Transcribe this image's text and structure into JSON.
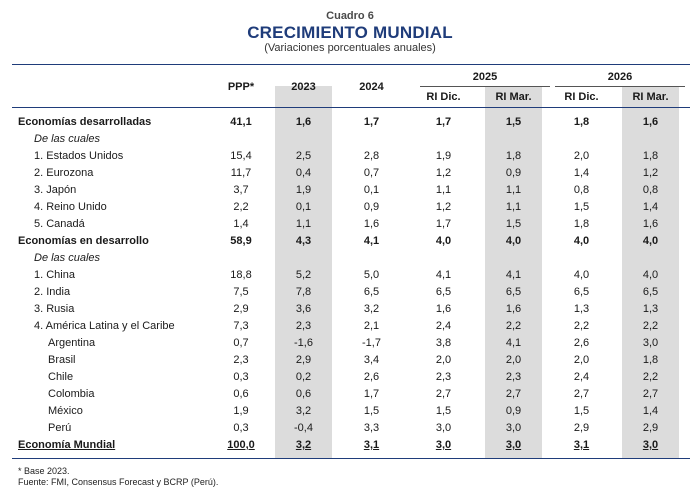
{
  "header": {
    "kicker": "Cuadro 6",
    "title": "CRECIMIENTO MUNDIAL",
    "subtitle": "(Variaciones porcentuales anuales)"
  },
  "columns": {
    "ppp": "PPP*",
    "y2023": "2023",
    "y2024": "2024",
    "y2025": "2025",
    "y2026": "2026",
    "ri_dic": "RI Dic.",
    "ri_mar": "RI Mar."
  },
  "rows": [
    {
      "label": "Economías desarrolladas",
      "style": "bold",
      "values": [
        "41,1",
        "1,6",
        "1,7",
        "1,7",
        "1,5",
        "1,8",
        "1,6"
      ]
    },
    {
      "label": "De las cuales",
      "style": "italic",
      "values": [
        "",
        "",
        "",
        "",
        "",
        "",
        ""
      ]
    },
    {
      "label": "1.  Estados Unidos",
      "style": "item",
      "values": [
        "15,4",
        "2,5",
        "2,8",
        "1,9",
        "1,8",
        "2,0",
        "1,8"
      ]
    },
    {
      "label": "2.  Eurozona",
      "style": "item",
      "values": [
        "11,7",
        "0,4",
        "0,7",
        "1,2",
        "0,9",
        "1,4",
        "1,2"
      ]
    },
    {
      "label": "3.  Japón",
      "style": "item",
      "values": [
        "3,7",
        "1,9",
        "0,1",
        "1,1",
        "1,1",
        "0,8",
        "0,8"
      ]
    },
    {
      "label": "4.  Reino Unido",
      "style": "item",
      "values": [
        "2,2",
        "0,1",
        "0,9",
        "1,2",
        "1,1",
        "1,5",
        "1,4"
      ]
    },
    {
      "label": "5.  Canadá",
      "style": "item",
      "values": [
        "1,4",
        "1,1",
        "1,6",
        "1,7",
        "1,5",
        "1,8",
        "1,6"
      ]
    },
    {
      "label": "Economías en desarrollo",
      "style": "bold",
      "values": [
        "58,9",
        "4,3",
        "4,1",
        "4,0",
        "4,0",
        "4,0",
        "4,0"
      ]
    },
    {
      "label": "De las cuales",
      "style": "italic",
      "values": [
        "",
        "",
        "",
        "",
        "",
        "",
        ""
      ]
    },
    {
      "label": "1.  China",
      "style": "item",
      "values": [
        "18,8",
        "5,2",
        "5,0",
        "4,1",
        "4,1",
        "4,0",
        "4,0"
      ]
    },
    {
      "label": "2.  India",
      "style": "item",
      "values": [
        "7,5",
        "7,8",
        "6,5",
        "6,5",
        "6,5",
        "6,5",
        "6,5"
      ]
    },
    {
      "label": "3.  Rusia",
      "style": "item",
      "values": [
        "2,9",
        "3,6",
        "3,2",
        "1,6",
        "1,6",
        "1,3",
        "1,3"
      ]
    },
    {
      "label": "4.  América Latina y el Caribe",
      "style": "item",
      "values": [
        "7,3",
        "2,3",
        "2,1",
        "2,4",
        "2,2",
        "2,2",
        "2,2"
      ]
    },
    {
      "label": "Argentina",
      "style": "sub",
      "values": [
        "0,7",
        "-1,6",
        "-1,7",
        "3,8",
        "4,1",
        "2,6",
        "3,0"
      ]
    },
    {
      "label": "Brasil",
      "style": "sub",
      "values": [
        "2,3",
        "2,9",
        "3,4",
        "2,0",
        "2,0",
        "2,0",
        "1,8"
      ]
    },
    {
      "label": "Chile",
      "style": "sub",
      "values": [
        "0,3",
        "0,2",
        "2,6",
        "2,3",
        "2,3",
        "2,4",
        "2,2"
      ]
    },
    {
      "label": "Colombia",
      "style": "sub",
      "values": [
        "0,6",
        "0,6",
        "1,7",
        "2,7",
        "2,7",
        "2,7",
        "2,7"
      ]
    },
    {
      "label": "México",
      "style": "sub",
      "values": [
        "1,9",
        "3,2",
        "1,5",
        "1,5",
        "0,9",
        "1,5",
        "1,4"
      ]
    },
    {
      "label": "Perú",
      "style": "sub",
      "values": [
        "0,3",
        "-0,4",
        "3,3",
        "3,0",
        "3,0",
        "2,9",
        "2,9"
      ]
    },
    {
      "label": "Economía Mundial",
      "style": "total",
      "values": [
        "100,0",
        "3,2",
        "3,1",
        "3,0",
        "3,0",
        "3,1",
        "3,0"
      ]
    }
  ],
  "footnotes": {
    "base": "* Base 2023.",
    "source": "Fuente:  FMI, Consensus Forecast y BCRP (Perú)."
  },
  "colors": {
    "title": "#1f3c7a",
    "shade": "#dcdcdc",
    "rule": "#1f3c7a"
  }
}
